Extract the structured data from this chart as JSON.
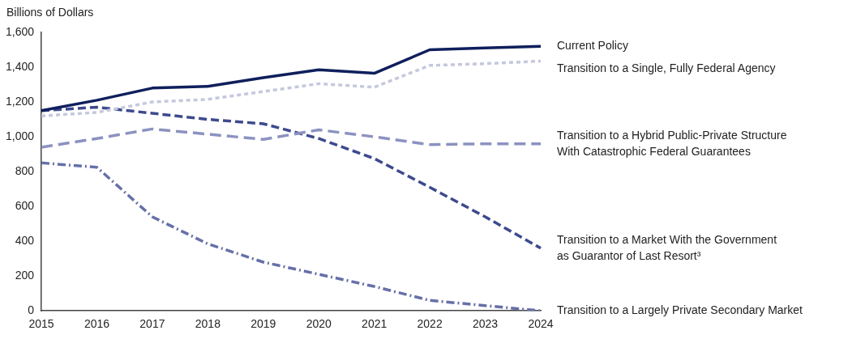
{
  "chart_data": {
    "type": "line",
    "ylabel": "Billions of Dollars",
    "categories": [
      "2015",
      "2016",
      "2017",
      "2018",
      "2019",
      "2020",
      "2021",
      "2022",
      "2023",
      "2024"
    ],
    "ylim": [
      0,
      1600
    ],
    "yticks": [
      0,
      {
        "value": 200,
        "label": "200"
      },
      {
        "value": 400,
        "label": "400"
      },
      {
        "value": 600,
        "label": "600"
      },
      {
        "value": 800,
        "label": "800"
      },
      {
        "value": 1000,
        "label": "1,000"
      },
      {
        "value": 1200,
        "label": "1,200"
      },
      {
        "value": 1400,
        "label": "1,400"
      },
      {
        "value": 1600,
        "label": "1,600"
      }
    ],
    "grid": false,
    "legend": false,
    "marker": "none",
    "series": [
      {
        "name": "Current Policy",
        "color": "#0f1f5c",
        "line_style": "solid",
        "values": [
          1150,
          1210,
          1280,
          1290,
          1340,
          1385,
          1365,
          1500,
          1510,
          1520
        ]
      },
      {
        "name": "Transition to a Single, Fully Federal Agency",
        "color": "#c5c8de",
        "line_style": "dotted",
        "values": [
          1120,
          1140,
          1200,
          1215,
          1260,
          1305,
          1285,
          1410,
          1420,
          1435
        ]
      },
      {
        "name": "Transition to a Hybrid Public-Private Structure\nWith Catastrophic Federal Guarantees",
        "color": "#8c92c0",
        "line_style": "dashed",
        "values": [
          940,
          990,
          1045,
          1015,
          985,
          1040,
          1000,
          955,
          960,
          960
        ]
      },
      {
        "name": "Transition to a Market With the Government\nas Guarantor of Last Resort³",
        "color": "#3d4a8e",
        "line_style": "dashed",
        "values": [
          1150,
          1170,
          1135,
          1100,
          1075,
          990,
          875,
          710,
          540,
          360
        ]
      },
      {
        "name": "Transition to a Largely Private Secondary Market",
        "color": "#6670a8",
        "line_style": "dashed",
        "values": [
          850,
          825,
          540,
          385,
          280,
          210,
          140,
          60,
          30,
          0
        ]
      }
    ]
  }
}
